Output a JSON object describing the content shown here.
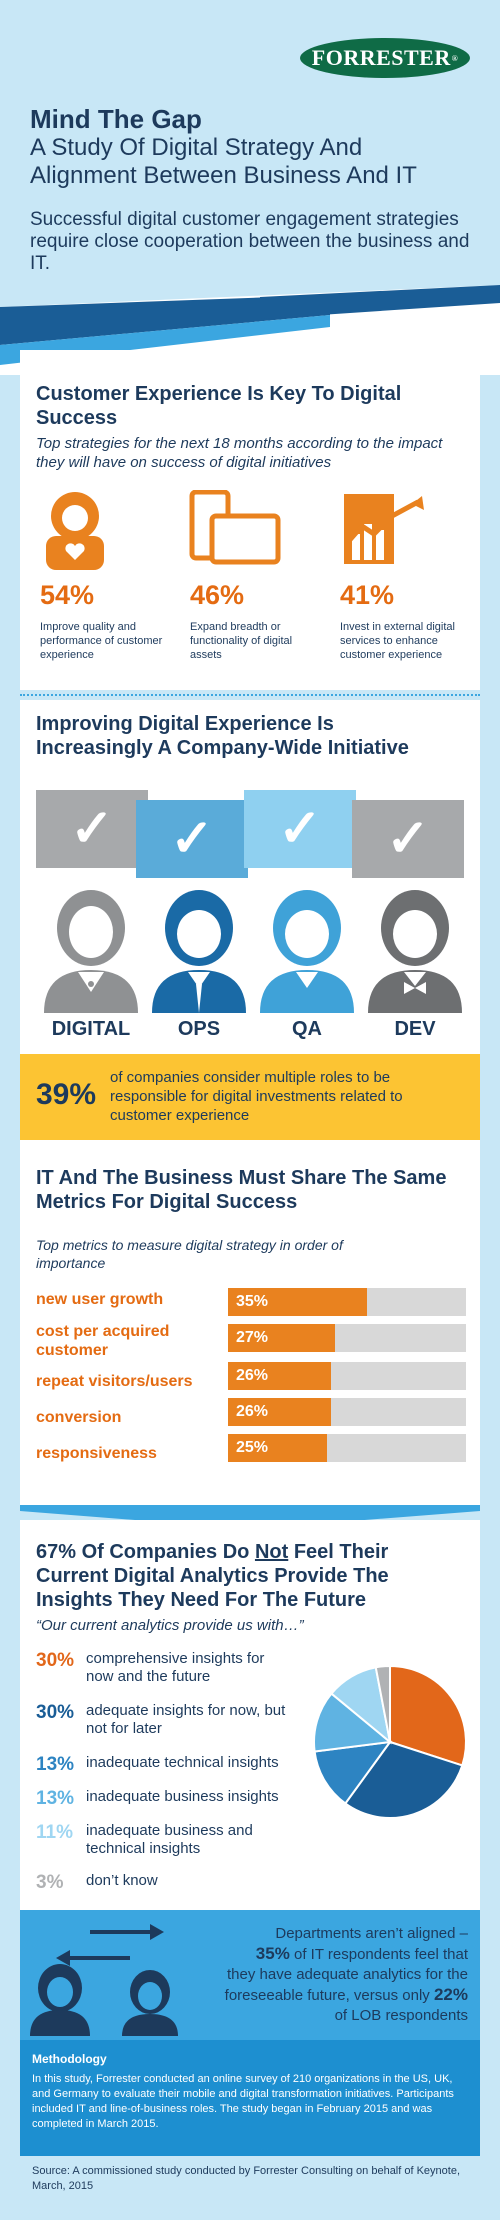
{
  "header": {
    "logo": "FORRESTER",
    "logo_mark": "®",
    "title": "Mind The Gap",
    "subtitle": "A Study Of Digital Strategy And Alignment Between Business And IT",
    "intro": "Successful digital customer engagement strategies require close cooperation between the business and IT."
  },
  "cx": {
    "title": "Customer Experience Is Key To Digital Success",
    "subtitle": "Top strategies for the next 18 months according to the impact they will have on success of digital initiatives",
    "items": [
      {
        "pct": "54%",
        "text": "Improve quality and performance of customer experience",
        "icon": "customer-heart-icon"
      },
      {
        "pct": "46%",
        "text": "Expand breadth or functionality of digital assets",
        "icon": "devices-icon"
      },
      {
        "pct": "41%",
        "text": "Invest in external digital services to enhance customer experience",
        "icon": "growth-chart-icon"
      }
    ]
  },
  "roles": {
    "title": "Improving Digital Experience Is Increasingly A Company-Wide Initiative",
    "items": [
      {
        "label": "DIGITAL",
        "color": "#a7a9ab",
        "figure": "#8f9193"
      },
      {
        "label": "OPS",
        "color": "#5aabd9",
        "figure": "#1a6aa6"
      },
      {
        "label": "QA",
        "color": "#8fd0f0",
        "figure": "#3fa2d8"
      },
      {
        "label": "DEV",
        "color": "#a7a9ab",
        "figure": "#6d6f71"
      }
    ],
    "check": "✓",
    "callout_pct": "39%",
    "callout_text": "of companies consider multiple roles to be responsible for digital investments related to customer experience"
  },
  "metrics": {
    "title": "IT And The Business Must Share The Same Metrics For Digital Success",
    "subtitle": "Top metrics to measure digital strategy in order of importance",
    "items": [
      {
        "label": "new user growth",
        "value": 35,
        "display": "35%"
      },
      {
        "label": "cost per acquired customer",
        "value": 27,
        "display": "27%"
      },
      {
        "label": "repeat visitors/users",
        "value": 26,
        "display": "26%"
      },
      {
        "label": "conversion",
        "value": 26,
        "display": "26%"
      },
      {
        "label": "responsiveness",
        "value": 25,
        "display": "25%"
      }
    ]
  },
  "analytics": {
    "title_a": "67% Of Companies Do ",
    "title_not": "Not",
    "title_b": " Feel Their Current Digital Analytics Provide The Insights They Need For The Future",
    "quote": "“Our current analytics provide us with…”",
    "items": [
      {
        "pct": "30%",
        "value": 30,
        "text": "comprehensive insights for now and the future",
        "color": "#e2671a"
      },
      {
        "pct": "30%",
        "value": 30,
        "text": "adequate insights for now, but not for later",
        "color": "#1a5d96"
      },
      {
        "pct": "13%",
        "value": 13,
        "text": "inadequate technical insights",
        "color": "#2d84c2"
      },
      {
        "pct": "13%",
        "value": 13,
        "text": "inadequate business insights",
        "color": "#5fb3e2"
      },
      {
        "pct": "11%",
        "value": 11,
        "text": "inadequate business and technical insights",
        "color": "#9fd6f2"
      },
      {
        "pct": "3%",
        "value": 3,
        "text": "don’t know",
        "color": "#b0b2b4"
      }
    ]
  },
  "gap": {
    "line1": "Departments aren’t aligned –",
    "pct1": "35%",
    "mid": " of IT respondents feel that they have adequate analytics for the foreseeable future, versus only ",
    "pct2": "22%",
    "end": " of LOB respondents"
  },
  "methodology": {
    "title": "Methodology",
    "text": "In this study, Forrester conducted an online survey of 210 organizations in the US, UK, and Germany to evaluate their mobile and digital transformation initiatives.  Participants included IT and line-of-business roles. The study began in February 2015 and was completed in March 2015."
  },
  "source": "Source: A commissioned study conducted by Forrester Consulting on behalf of Keynote, March, 2015"
}
